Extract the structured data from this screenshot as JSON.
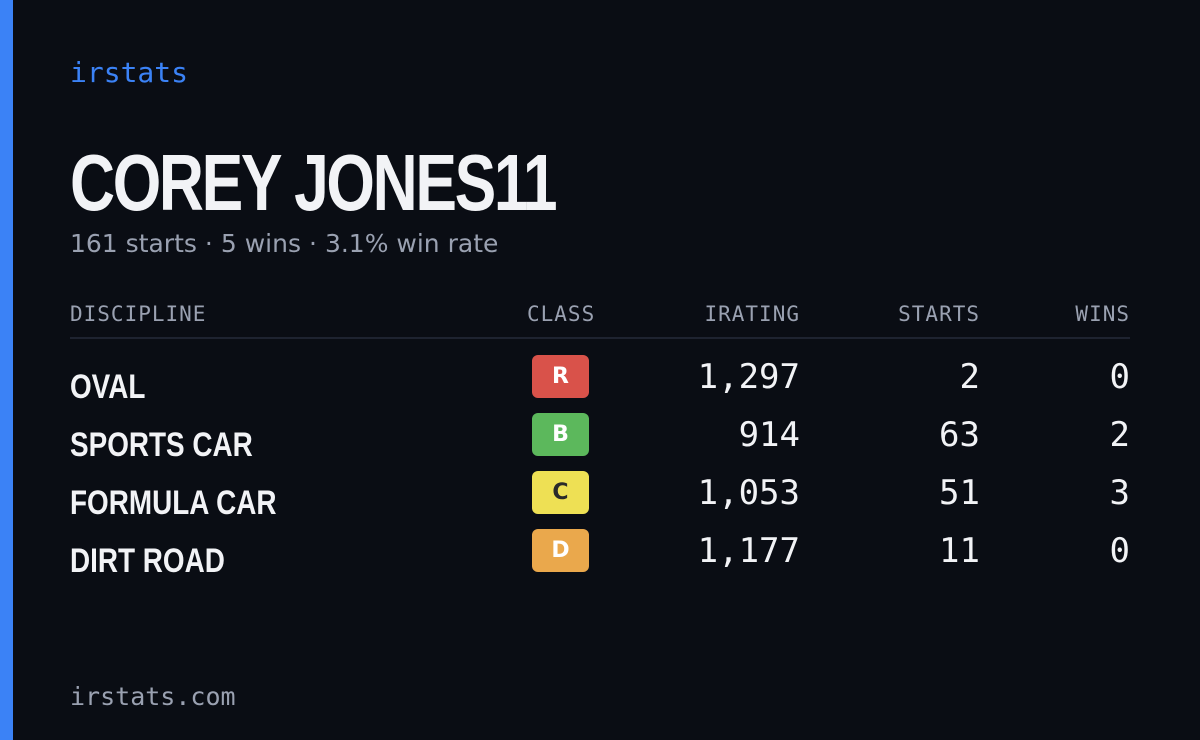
{
  "brand": "irstats",
  "driver": {
    "name": "COREY JONES11"
  },
  "summary": {
    "starts": "161 starts",
    "wins": "5 wins",
    "win_rate": "3.1% win rate",
    "separator": "·"
  },
  "table": {
    "headers": {
      "discipline": "DISCIPLINE",
      "class": "CLASS",
      "irating": "IRATING",
      "starts": "STARTS",
      "wins": "WINS"
    },
    "rows": [
      {
        "discipline": "OVAL",
        "class": "R",
        "class_color": "#d9524a",
        "class_text_color": "#ffffff",
        "irating": "1,297",
        "starts": "2",
        "wins": "0"
      },
      {
        "discipline": "SPORTS CAR",
        "class": "B",
        "class_color": "#5cb85c",
        "class_text_color": "#ffffff",
        "irating": "914",
        "starts": "63",
        "wins": "2"
      },
      {
        "discipline": "FORMULA CAR",
        "class": "C",
        "class_color": "#eee054",
        "class_text_color": "#2a2a2a",
        "irating": "1,053",
        "starts": "51",
        "wins": "3"
      },
      {
        "discipline": "DIRT ROAD",
        "class": "D",
        "class_color": "#eaa84c",
        "class_text_color": "#ffffff",
        "irating": "1,177",
        "starts": "11",
        "wins": "0"
      }
    ]
  },
  "footer": "irstats.com",
  "colors": {
    "accent": "#3b82f6",
    "background": "#0a0d14",
    "text": "#f2f3f6",
    "muted": "#9aa1b1"
  }
}
